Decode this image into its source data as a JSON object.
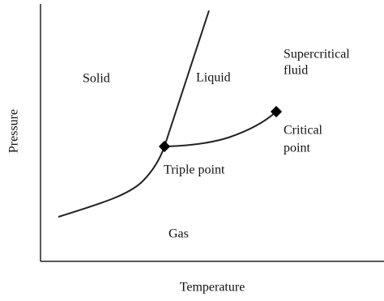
{
  "axes": {
    "x_label": "Temperature",
    "y_label": "Pressure"
  },
  "regions": [
    {
      "lines": [
        "Solid"
      ]
    },
    {
      "lines": [
        "Liquid"
      ]
    },
    {
      "lines": [
        "Supercritical",
        "fluid"
      ]
    },
    {
      "lines": [
        "Gas"
      ]
    }
  ],
  "points": [
    {
      "lines": [
        "Triple point"
      ]
    },
    {
      "lines": [
        "Critical",
        "point"
      ]
    }
  ]
}
